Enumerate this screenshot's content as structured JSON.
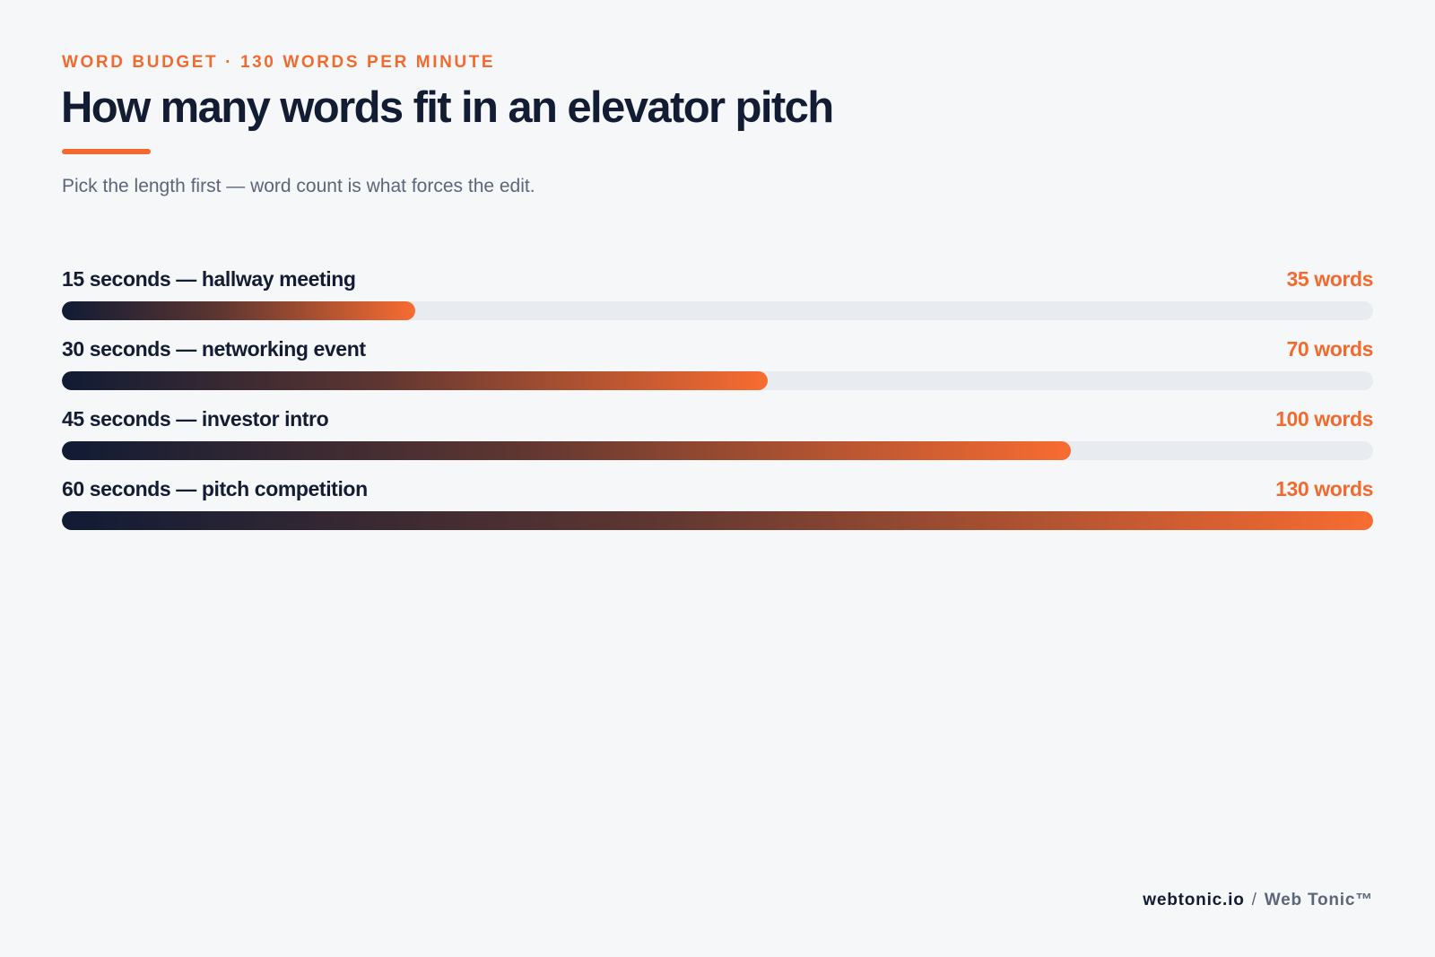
{
  "header": {
    "eyebrow": "WORD BUDGET · 130 WORDS PER MINUTE",
    "title": "How many words fit in an elevator pitch",
    "subtitle": "Pick the length first — word count is what forces the edit."
  },
  "colors": {
    "accent": "#f26a2e",
    "ink": "#121c33",
    "muted": "#5b6678",
    "track": "#e8ebf0",
    "background": "#f6f7f9"
  },
  "chart_data": {
    "type": "bar",
    "orientation": "horizontal",
    "categories": [
      "15 seconds — hallway meeting",
      "30 seconds — networking event",
      "45 seconds — investor intro",
      "60 seconds — pitch competition"
    ],
    "values": [
      35,
      70,
      100,
      130
    ],
    "value_labels": [
      "35 words",
      "70 words",
      "100 words",
      "130 words"
    ],
    "xlim": [
      0,
      130
    ],
    "grid": false,
    "legend": "none"
  },
  "footer": {
    "domain": "webtonic.io",
    "separator": "/",
    "brand": "Web Tonic™"
  }
}
